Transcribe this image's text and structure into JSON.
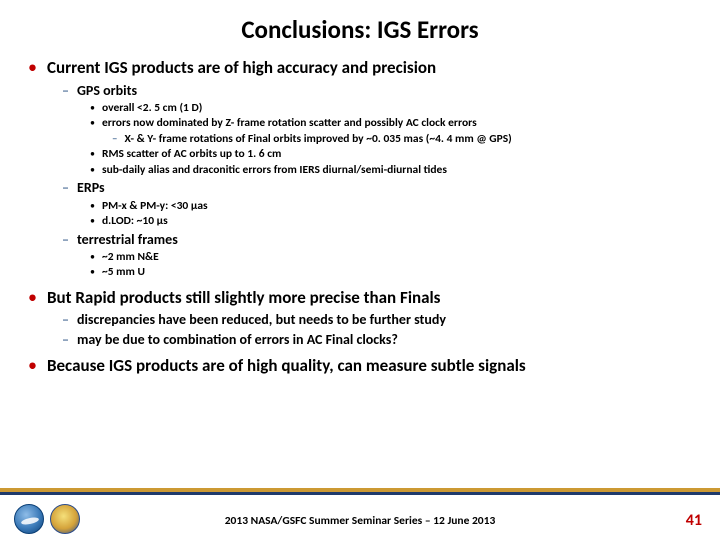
{
  "title": "Conclusions: IGS Errors",
  "bullets": [
    {
      "text": "Current IGS products are of high accuracy and precision",
      "sub": [
        {
          "text": "GPS orbits",
          "sub": [
            {
              "text": "overall <2. 5 cm (1 D)"
            },
            {
              "text": "errors now dominated by Z- frame rotation scatter and possibly AC clock errors",
              "sub": [
                {
                  "text": "X- & Y- frame rotations of Final orbits improved by ~0. 035 mas (~4. 4 mm @ GPS)"
                }
              ]
            },
            {
              "text": "RMS scatter of AC orbits up to 1. 6 cm"
            },
            {
              "text": "sub-daily alias and draconitic errors from IERS diurnal/semi-diurnal tides"
            }
          ]
        },
        {
          "text": "ERPs",
          "sub": [
            {
              "text": "PM-x & PM-y: <30 μas"
            },
            {
              "text": "d.LOD: ~10 μs"
            }
          ]
        },
        {
          "text": "terrestrial frames",
          "sub": [
            {
              "text": "~2 mm N&E"
            },
            {
              "text": "~5 mm U"
            }
          ]
        }
      ]
    },
    {
      "text": "But Rapid products still slightly more precise than Finals",
      "sub": [
        {
          "text": "discrepancies have been reduced, but needs to be further study"
        },
        {
          "text": "may be due to combination of errors in AC Final clocks?"
        }
      ]
    },
    {
      "text": "Because IGS products are of high quality, can measure subtle signals"
    }
  ],
  "footer": {
    "text": "2013 NASA/GSFC Summer Seminar Series – 12 June 2013",
    "page": "41"
  },
  "colors": {
    "accent_red": "#c00000",
    "accent_navy": "#1f497d",
    "rule_gold": "#cc9933",
    "rule_navy": "#1f3a6b"
  }
}
